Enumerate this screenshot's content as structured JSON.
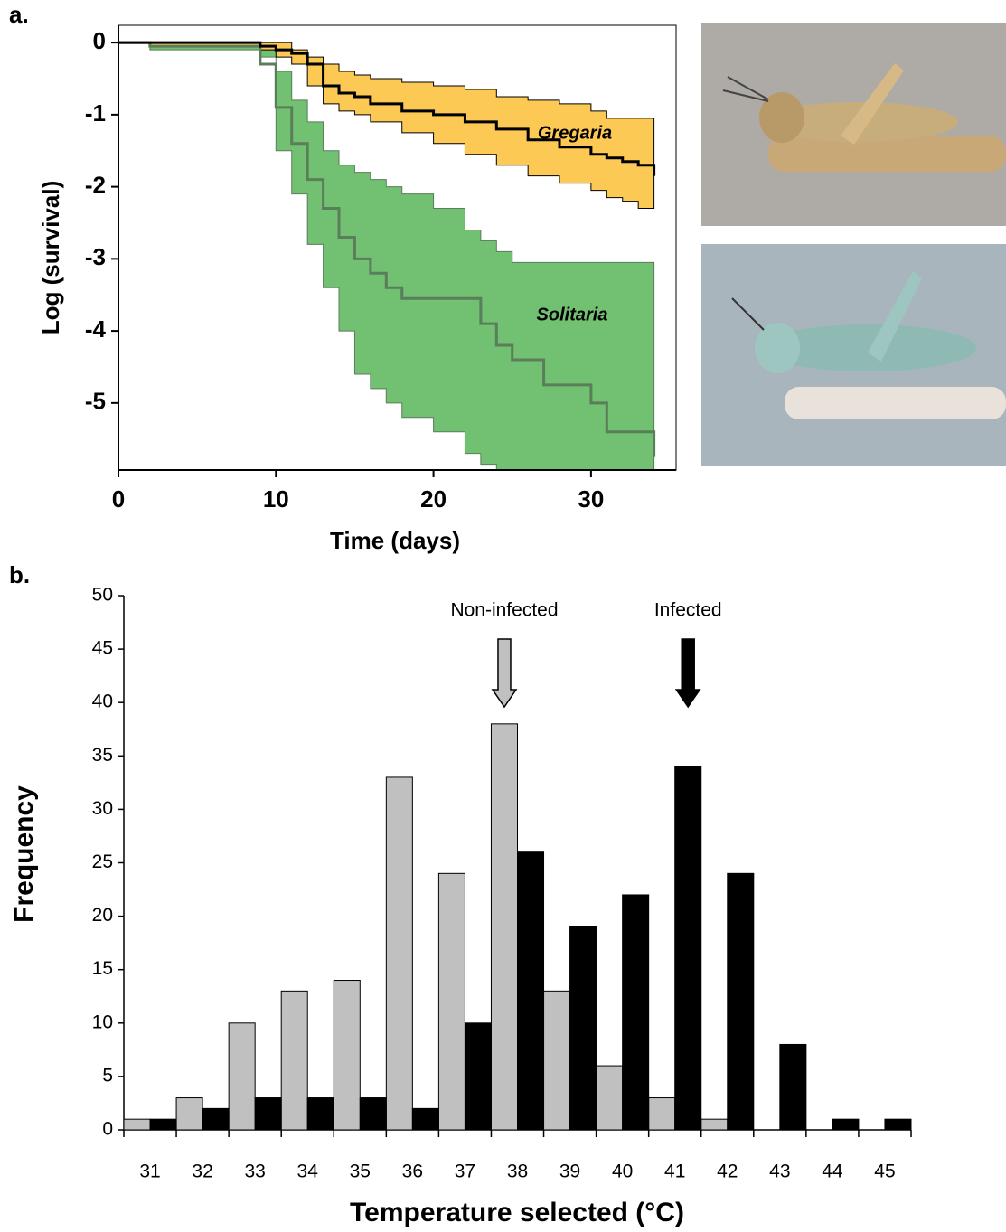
{
  "chart_data": [
    {
      "type": "step",
      "panel": "a.",
      "xlabel": "Time (days)",
      "ylabel": "Log (survival)",
      "xlim": [
        0,
        35.4
      ],
      "ylim": [
        -5.93,
        0.24
      ],
      "xticks": [
        0,
        10,
        20,
        30
      ],
      "yticks": [
        0,
        -1,
        -2,
        -3,
        -4,
        -5
      ],
      "series": [
        {
          "name": "Solitaria",
          "color": "#5a7d5a",
          "band_color": "#72c072",
          "x": [
            0,
            2,
            9,
            10,
            11,
            12,
            13,
            14,
            15,
            16,
            17,
            18,
            20,
            22,
            23,
            24,
            25,
            27,
            30,
            31,
            34
          ],
          "values": [
            0,
            -0.05,
            -0.3,
            -0.9,
            -1.4,
            -1.9,
            -2.3,
            -2.7,
            -3.0,
            -3.2,
            -3.4,
            -3.55,
            -3.55,
            -3.55,
            -3.9,
            -4.2,
            -4.4,
            -4.75,
            -5.0,
            -5.4,
            -5.75
          ],
          "upper": [
            0,
            -0.05,
            -0.1,
            -0.4,
            -0.8,
            -1.1,
            -1.5,
            -1.7,
            -1.8,
            -1.9,
            -2.0,
            -2.1,
            -2.3,
            -2.6,
            -2.75,
            -2.9,
            -3.05,
            -3.05,
            -3.05,
            -3.05,
            -3.05
          ],
          "lower": [
            0,
            -0.1,
            -0.2,
            -1.5,
            -2.1,
            -2.8,
            -3.4,
            -4.0,
            -4.6,
            -4.8,
            -5.0,
            -5.2,
            -5.4,
            -5.7,
            -5.85,
            -6.0,
            -6.2,
            -6.4,
            -6.6,
            -6.7,
            -6.8
          ]
        },
        {
          "name": "Gregaria",
          "color": "#000000",
          "band_color": "#fdc955",
          "x": [
            0,
            2,
            9,
            10,
            11,
            12,
            13,
            14,
            15,
            16,
            18,
            20,
            22,
            24,
            26,
            28,
            30,
            31,
            32,
            33,
            34
          ],
          "values": [
            0,
            0,
            -0.05,
            -0.1,
            -0.15,
            -0.3,
            -0.6,
            -0.7,
            -0.75,
            -0.85,
            -0.95,
            -1.0,
            -1.1,
            -1.2,
            -1.35,
            -1.45,
            -1.55,
            -1.6,
            -1.65,
            -1.7,
            -1.85
          ],
          "upper": [
            0,
            0,
            0,
            0,
            -0.1,
            -0.2,
            -0.3,
            -0.4,
            -0.45,
            -0.5,
            -0.55,
            -0.6,
            -0.65,
            -0.75,
            -0.8,
            -0.85,
            -0.95,
            -1.05,
            -1.05,
            -1.05,
            -1.05
          ],
          "lower": [
            0,
            -0.05,
            -0.1,
            -0.2,
            -0.3,
            -0.6,
            -0.85,
            -0.95,
            -1.0,
            -1.1,
            -1.25,
            -1.4,
            -1.55,
            -1.7,
            -1.85,
            -1.95,
            -2.05,
            -2.15,
            -2.2,
            -2.3,
            -2.3
          ]
        }
      ]
    },
    {
      "type": "bar",
      "panel": "b.",
      "xlabel": "Temperature selected (°C)",
      "ylabel": "Frequency",
      "categories": [
        "31",
        "32",
        "33",
        "34",
        "35",
        "36",
        "37",
        "38",
        "39",
        "40",
        "41",
        "42",
        "43",
        "44",
        "45"
      ],
      "ylim": [
        0,
        50
      ],
      "yticks": [
        0,
        5,
        10,
        15,
        20,
        25,
        30,
        35,
        40,
        45,
        50
      ],
      "series": [
        {
          "name": "Non-infected",
          "color": "#c0c0c0",
          "values": [
            1,
            3,
            10,
            13,
            14,
            33,
            24,
            38,
            13,
            6,
            3,
            1,
            0,
            0,
            0
          ]
        },
        {
          "name": "Infected",
          "color": "#000000",
          "values": [
            1,
            2,
            3,
            3,
            3,
            2,
            10,
            26,
            19,
            22,
            34,
            24,
            8,
            1,
            1
          ]
        }
      ]
    }
  ]
}
